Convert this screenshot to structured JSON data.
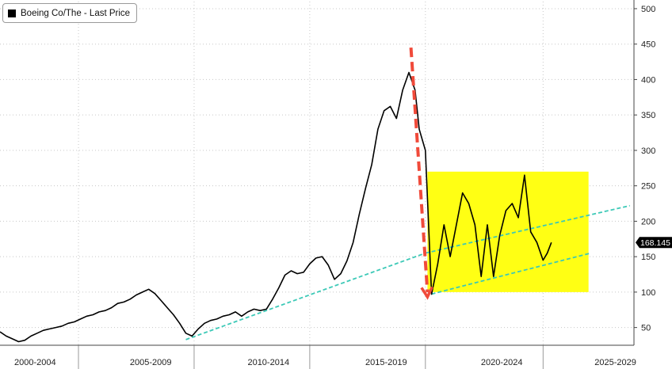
{
  "chart_data": {
    "type": "line",
    "legend": [
      {
        "name": "Boeing Co/The - Last Price",
        "color": "#000000"
      }
    ],
    "last_price_label": "168.145",
    "yticks": [
      50,
      100,
      150,
      200,
      250,
      300,
      350,
      400,
      450,
      500
    ],
    "ylim": [
      25,
      510
    ],
    "xlim": [
      2000.0,
      2030.7
    ],
    "xtick_labels": [
      {
        "label": "2000-2004",
        "center": 2001.7
      },
      {
        "label": "2005-2009",
        "center": 2007.3
      },
      {
        "label": "2010-2014",
        "center": 2013.0
      },
      {
        "label": "2015-2019",
        "center": 2018.7
      },
      {
        "label": "2020-2024",
        "center": 2024.3
      },
      {
        "label": "2025-2029",
        "center": 2029.8
      }
    ],
    "period_boundaries": [
      2003.8,
      2009.4,
      2015.0,
      2020.6,
      2026.3
    ],
    "grid": true,
    "series": [
      {
        "name": "Boeing Co/The - Last Price",
        "x": [
          2000.0,
          2000.3,
          2000.6,
          2000.9,
          2001.2,
          2001.5,
          2001.8,
          2002.1,
          2002.4,
          2002.7,
          2003.0,
          2003.3,
          2003.6,
          2003.9,
          2004.2,
          2004.5,
          2004.8,
          2005.1,
          2005.4,
          2005.7,
          2006.0,
          2006.3,
          2006.6,
          2006.9,
          2007.2,
          2007.5,
          2007.8,
          2008.1,
          2008.4,
          2008.7,
          2009.0,
          2009.3,
          2009.6,
          2009.9,
          2010.2,
          2010.5,
          2010.8,
          2011.1,
          2011.4,
          2011.7,
          2012.0,
          2012.3,
          2012.6,
          2012.9,
          2013.2,
          2013.5,
          2013.8,
          2014.1,
          2014.4,
          2014.7,
          2015.0,
          2015.3,
          2015.6,
          2015.9,
          2016.2,
          2016.5,
          2016.8,
          2017.1,
          2017.4,
          2017.7,
          2018.0,
          2018.3,
          2018.6,
          2018.9,
          2019.2,
          2019.5,
          2019.8,
          2020.1,
          2020.3,
          2020.6,
          2020.9,
          2021.2,
          2021.5,
          2021.8,
          2022.1,
          2022.4,
          2022.7,
          2023.0,
          2023.3,
          2023.6,
          2023.9,
          2024.2,
          2024.5,
          2024.8,
          2025.1,
          2025.4,
          2025.7,
          2026.0,
          2026.3,
          2026.5,
          2026.7
        ],
        "values": [
          44,
          38,
          34,
          30,
          32,
          38,
          42,
          46,
          48,
          50,
          52,
          56,
          58,
          62,
          66,
          68,
          72,
          74,
          78,
          84,
          86,
          90,
          96,
          100,
          104,
          98,
          88,
          78,
          68,
          56,
          42,
          38,
          48,
          56,
          60,
          62,
          66,
          68,
          72,
          66,
          72,
          76,
          74,
          76,
          90,
          106,
          124,
          130,
          126,
          128,
          140,
          148,
          150,
          138,
          118,
          126,
          144,
          170,
          210,
          246,
          280,
          330,
          356,
          362,
          345,
          385,
          410,
          385,
          330,
          300,
          97,
          140,
          195,
          150,
          195,
          240,
          225,
          195,
          122,
          195,
          122,
          180,
          215,
          225,
          205,
          265,
          185,
          170,
          145,
          155,
          170
        ]
      }
    ],
    "trend_lines": [
      {
        "x1": 2009.0,
        "y1": 33,
        "x2": 2020.6,
        "y2": 155,
        "color": "#3cc9b7"
      },
      {
        "x1": 2020.6,
        "y1": 155,
        "x2": 2030.5,
        "y2": 222,
        "color": "#3cc9b7"
      },
      {
        "x1": 2020.6,
        "y1": 95,
        "x2": 2028.6,
        "y2": 155,
        "color": "#3cc9b7"
      }
    ],
    "highlight_box": {
      "x1": 2020.7,
      "x2": 2028.5,
      "y1": 100,
      "y2": 270,
      "color": "#ffff14"
    },
    "arrow": {
      "x1": 2019.9,
      "y1": 445,
      "x2": 2020.7,
      "y2": 93,
      "color": "#f04a3a"
    }
  }
}
